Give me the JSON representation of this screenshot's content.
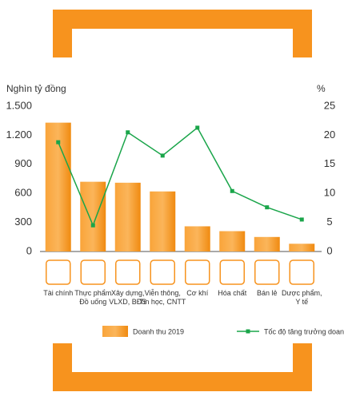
{
  "chart_data": {
    "type": "bar_line",
    "y_label": "Nghìn tỷ đồng",
    "y2_label": "%",
    "categories": [
      "Tài chính",
      "Thực phẩm\nĐồ uống",
      "Xây dựng,\nVLXD, BĐS",
      "Viễn thông,\nTin học, CNTT",
      "Cơ khí",
      "Hóa chất",
      "Bán lẻ",
      "Dược phẩm,\nY tế"
    ],
    "series": [
      {
        "name": "Doanh thu 2019",
        "type": "bar",
        "color": "#f7931e",
        "values": [
          1330,
          720,
          710,
          620,
          260,
          210,
          150,
          80
        ]
      },
      {
        "name": "Tốc độ tăng trưởng doanh thu",
        "type": "line",
        "axis": "y2",
        "color": "#1aa54a",
        "values": [
          18.8,
          4.5,
          20.5,
          16.5,
          21.3,
          10.4,
          7.6,
          5.5
        ]
      }
    ],
    "ylim": [
      0,
      1500
    ],
    "yticks": [
      0,
      300,
      600,
      900,
      {
        "value": 1200,
        "label": "1.200"
      },
      {
        "value": 1500,
        "label": "1.500"
      }
    ],
    "y2lim": [
      0,
      25
    ],
    "y2ticks": [
      0,
      5,
      10,
      15,
      20,
      25
    ]
  }
}
